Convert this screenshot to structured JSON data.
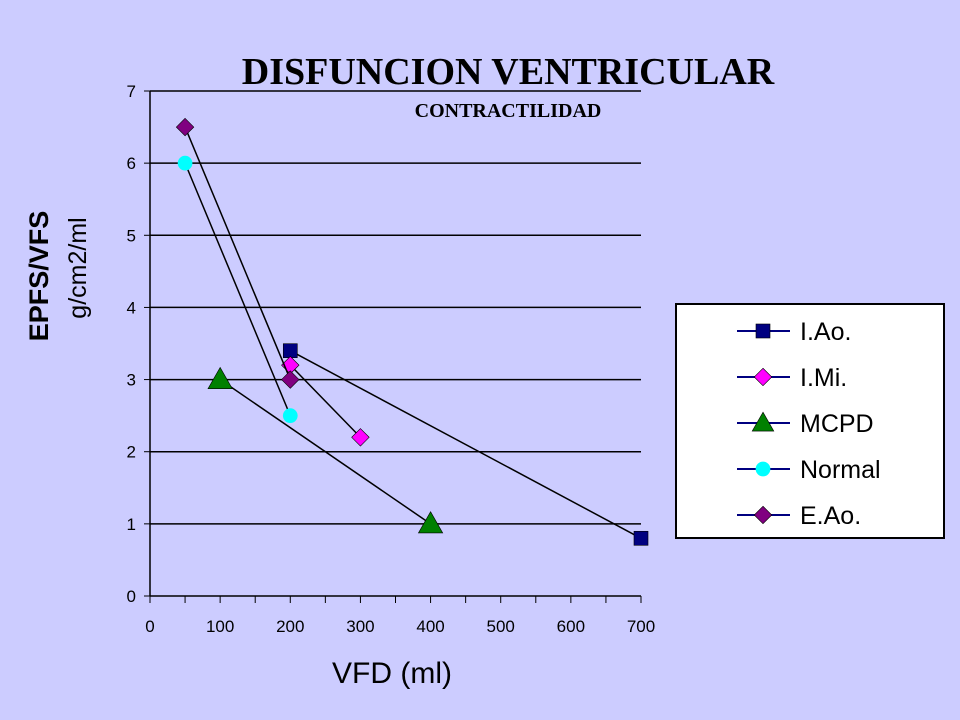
{
  "chart_data": {
    "type": "line",
    "title": "DISFUNCION VENTRICULAR",
    "subtitle": "CONTRACTILIDAD",
    "xlabel": "VFD  (ml)",
    "ylabel": [
      "EPFS/VFS",
      "g/cm2/ml"
    ],
    "xlim": [
      0,
      700
    ],
    "ylim": [
      0,
      7
    ],
    "x_ticks": [
      "0",
      "100",
      "200",
      "300",
      "400",
      "500",
      "600",
      "700"
    ],
    "y_ticks": [
      "0",
      "1",
      "2",
      "3",
      "4",
      "5",
      "6",
      "7"
    ],
    "grid": "horizontal",
    "legend_position": "right",
    "series": [
      {
        "name": "I.Ao.",
        "marker": "square",
        "color": "#000080",
        "points": [
          [
            200,
            3.4
          ],
          [
            700,
            0.8
          ]
        ]
      },
      {
        "name": "I.Mi.",
        "marker": "diamond",
        "color": "#ff00ff",
        "points": [
          [
            200,
            3.2
          ],
          [
            300,
            2.2
          ]
        ]
      },
      {
        "name": "MCPD",
        "marker": "triangle",
        "color": "#008000",
        "points": [
          [
            100,
            3.0
          ],
          [
            400,
            1.0
          ]
        ]
      },
      {
        "name": "Normal",
        "marker": "circle",
        "color": "#00ffff",
        "points": [
          [
            50,
            6.0
          ],
          [
            200,
            2.5
          ]
        ]
      },
      {
        "name": "E.Ao.",
        "marker": "diamond",
        "color": "#800080",
        "points": [
          [
            50,
            6.5
          ],
          [
            200,
            3.0
          ]
        ]
      }
    ]
  }
}
